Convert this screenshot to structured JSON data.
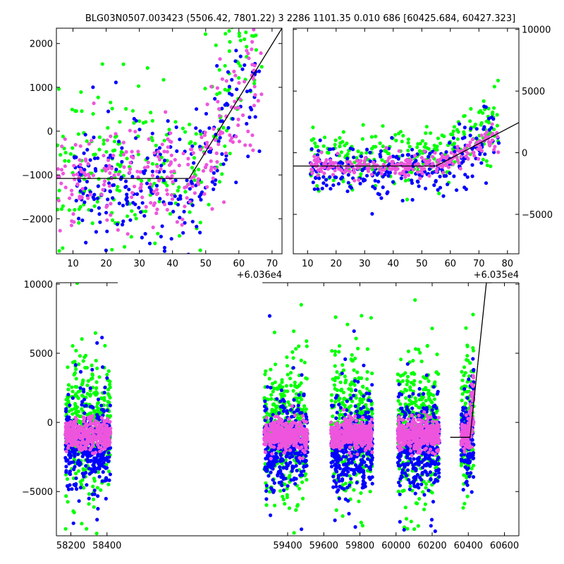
{
  "figure": {
    "title": "BLG03N0507.003423 (5506.42, 7801.22)   3 2286 1101.35 0.010 686 [60425.684, 60427.323]",
    "colors": {
      "blue": "#0000ff",
      "green": "#00ff00",
      "pink": "#ee55dd",
      "model": "#000000"
    }
  },
  "chart_data": [
    {
      "id": "top_left",
      "type": "scatter",
      "title": "",
      "xlabel": "",
      "ylabel": "",
      "x_offset_label": "+6.036e4",
      "xlim": [
        5,
        73
      ],
      "ylim": [
        -2800,
        2350
      ],
      "xticks": [
        10,
        20,
        30,
        40,
        50,
        60,
        70
      ],
      "xtick_labels": [
        "10",
        "20",
        "30",
        "40",
        "50",
        "60",
        "70"
      ],
      "yticks": [
        -2000,
        -1000,
        0,
        1000,
        2000
      ],
      "ytick_labels": [
        "−2000",
        "−1000",
        "0",
        "1000",
        "2000"
      ],
      "yaxis_side": "left",
      "model_line": {
        "x": [
          5,
          45,
          73
        ],
        "y": [
          -1080,
          -1080,
          2350
        ]
      },
      "series": [
        {
          "color": "green",
          "x_range": [
            5,
            67
          ],
          "center_x": 44,
          "base": -850,
          "scatter": 900,
          "break_x": 45,
          "slope": 160
        },
        {
          "color": "blue",
          "x_range": [
            10,
            67
          ],
          "center_x": 44,
          "base": -1300,
          "scatter": 750,
          "break_x": 45,
          "slope": 140
        },
        {
          "color": "pink",
          "x_range": [
            5,
            67
          ],
          "center_x": 44,
          "base": -1100,
          "scatter": 550,
          "break_x": 45,
          "slope": 120
        }
      ]
    },
    {
      "id": "top_right",
      "type": "scatter",
      "title": "",
      "xlabel": "",
      "ylabel": "",
      "x_offset_label": "+6.035e4",
      "xlim": [
        5,
        84
      ],
      "ylim": [
        -8200,
        10100
      ],
      "xticks": [
        10,
        20,
        30,
        40,
        50,
        60,
        70,
        80
      ],
      "xtick_labels": [
        "10",
        "20",
        "30",
        "40",
        "50",
        "60",
        "70",
        "80"
      ],
      "yticks": [
        -5000,
        0,
        5000,
        10000
      ],
      "ytick_labels": [
        "−5000",
        "0",
        "5000",
        "10000"
      ],
      "yaxis_side": "right",
      "model_line": {
        "x": [
          5,
          55,
          84
        ],
        "y": [
          -1080,
          -1080,
          2450
        ]
      },
      "series": [
        {
          "color": "green",
          "x_range": [
            11,
            77
          ],
          "base": -500,
          "scatter": 1200,
          "break_x": 55,
          "slope": 160
        },
        {
          "color": "blue",
          "x_range": [
            11,
            77
          ],
          "base": -1500,
          "scatter": 1100,
          "break_x": 55,
          "slope": 140
        },
        {
          "color": "pink",
          "x_range": [
            11,
            77
          ],
          "base": -1100,
          "scatter": 450,
          "break_x": 55,
          "slope": 120
        }
      ]
    },
    {
      "id": "bottom",
      "type": "scatter",
      "title": "",
      "xlabel": "",
      "ylabel": "",
      "x_offset_label": "",
      "xlim": [
        58120,
        60680
      ],
      "ylim": [
        -8200,
        10100
      ],
      "xticks": [
        58200,
        58400,
        59400,
        59600,
        59800,
        60000,
        60200,
        60400,
        60600
      ],
      "xtick_labels": [
        "58200",
        "58400",
        "59400",
        "59600",
        "59800",
        "60000",
        "60200",
        "60400",
        "60600"
      ],
      "axis_break": {
        "after_x": 58460,
        "before_x": 59260
      },
      "yticks": [
        -5000,
        0,
        5000,
        10000
      ],
      "ytick_labels": [
        "−5000",
        "0",
        "5000",
        "10000"
      ],
      "yaxis_side": "left",
      "model_line": {
        "x": [
          60300,
          60410,
          60500,
          60530
        ],
        "y": [
          -1080,
          -1080,
          10100,
          10100
        ]
      },
      "seasons": [
        {
          "range": [
            58170,
            58420
          ],
          "density": 1
        },
        {
          "range": [
            59270,
            59510
          ],
          "density": 1
        },
        {
          "range": [
            59640,
            59870
          ],
          "density": 1
        },
        {
          "range": [
            60010,
            60240
          ],
          "density": 1
        },
        {
          "range": [
            60360,
            60430
          ],
          "density": 0.35
        }
      ],
      "series": [
        {
          "color": "green",
          "base": -400,
          "scatter": 2300
        },
        {
          "color": "blue",
          "base": -1700,
          "scatter": 1500
        },
        {
          "color": "pink",
          "base": -900,
          "scatter": 550
        }
      ]
    }
  ]
}
